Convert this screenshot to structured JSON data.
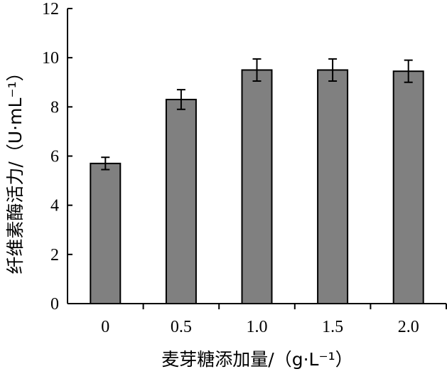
{
  "chart_data": {
    "type": "bar",
    "title": "",
    "xlabel": "麦芽糖添加量/（g·L⁻¹）",
    "ylabel": "纤维素酶活力/（U·mL⁻¹）",
    "categories": [
      "0",
      "0.5",
      "1.0",
      "1.5",
      "2.0"
    ],
    "values": [
      5.7,
      8.3,
      9.5,
      9.5,
      9.45
    ],
    "errors": [
      0.25,
      0.4,
      0.45,
      0.45,
      0.45
    ],
    "ylim": [
      0,
      12
    ],
    "yticks": [
      "0",
      "2",
      "4",
      "6",
      "8",
      "10",
      "12"
    ],
    "grid": false,
    "bar_color": "#808080"
  }
}
